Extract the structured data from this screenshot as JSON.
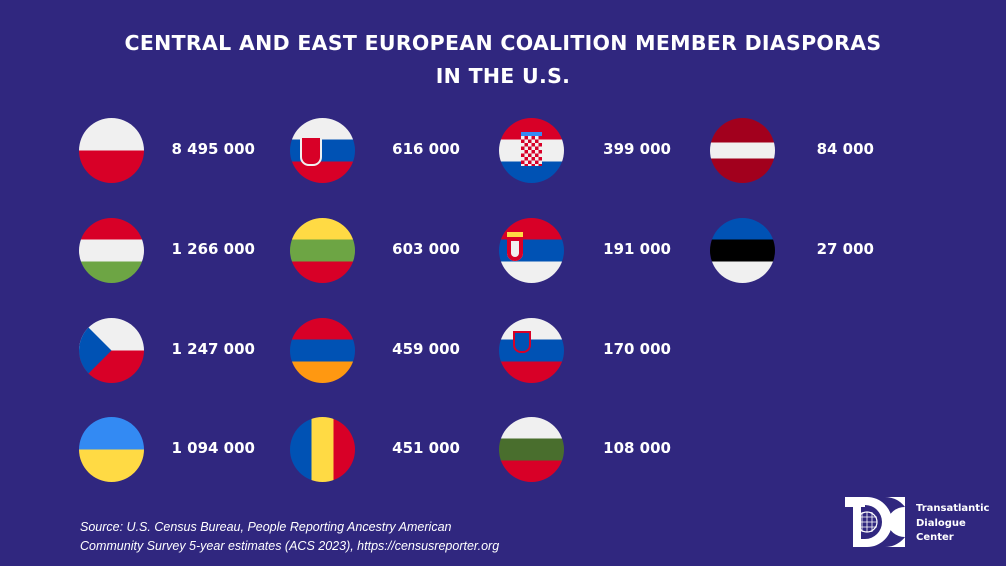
{
  "title_line1": "CENTRAL AND EAST EUROPEAN COALITION MEMBER DIASPORAS",
  "title_line2": "IN THE U.S.",
  "columns": [
    [
      {
        "country": "poland",
        "value": "8 495 000",
        "dir": "h",
        "stripes": [
          "#f0f0f0",
          "#d80027"
        ]
      },
      {
        "country": "hungary",
        "value": "1 266 000",
        "dir": "h",
        "stripes": [
          "#d80027",
          "#f0f0f0",
          "#6da544"
        ]
      },
      {
        "country": "czechia",
        "value": "1 247 000",
        "dir": "h",
        "stripes": [
          "#f0f0f0",
          "#d80027"
        ],
        "triangle": "#0052b4"
      },
      {
        "country": "ukraine",
        "value": "1 094 000",
        "dir": "h",
        "stripes": [
          "#338af3",
          "#ffda44"
        ]
      }
    ],
    [
      {
        "country": "slovakia",
        "value": "616 000",
        "dir": "h",
        "stripes": [
          "#f0f0f0",
          "#0052b4",
          "#d80027"
        ],
        "emblem": "slovakia"
      },
      {
        "country": "lithuania",
        "value": "603 000",
        "dir": "h",
        "stripes": [
          "#ffda44",
          "#6da544",
          "#d80027"
        ]
      },
      {
        "country": "armenia",
        "value": "459 000",
        "dir": "h",
        "stripes": [
          "#d80027",
          "#0052b4",
          "#ff9811"
        ]
      },
      {
        "country": "romania",
        "value": "451 000",
        "dir": "v",
        "stripes": [
          "#0052b4",
          "#ffda44",
          "#d80027"
        ]
      }
    ],
    [
      {
        "country": "croatia",
        "value": "399 000",
        "dir": "h",
        "stripes": [
          "#d80027",
          "#f0f0f0",
          "#0052b4"
        ],
        "emblem": "croatia"
      },
      {
        "country": "serbia",
        "value": "191 000",
        "dir": "h",
        "stripes": [
          "#d80027",
          "#0052b4",
          "#f0f0f0"
        ],
        "emblem": "serbia"
      },
      {
        "country": "slovenia",
        "value": "170 000",
        "dir": "h",
        "stripes": [
          "#f0f0f0",
          "#0052b4",
          "#d80027"
        ],
        "emblem": "slovenia"
      },
      {
        "country": "bulgaria",
        "value": "108 000",
        "dir": "h",
        "stripes": [
          "#f0f0f0",
          "#496e2d",
          "#d80027"
        ]
      }
    ],
    [
      {
        "country": "latvia",
        "value": "84 000",
        "dir": "latvia",
        "stripes": [
          "#a2001d",
          "#f0f0f0",
          "#a2001d"
        ]
      },
      {
        "country": "estonia",
        "value": "27 000",
        "dir": "h",
        "stripes": [
          "#0052b4",
          "#000000",
          "#f0f0f0"
        ]
      }
    ]
  ],
  "source_line1": "Source: U.S. Census Bureau, People Reporting Ancestry American",
  "source_line2": "Community Survey 5-year estimates (ACS 2023), https://censusreporter.org",
  "logo": {
    "line1": "Transatlantic",
    "line2": "Dialogue",
    "line3": "Center",
    "mark": "TDC"
  }
}
